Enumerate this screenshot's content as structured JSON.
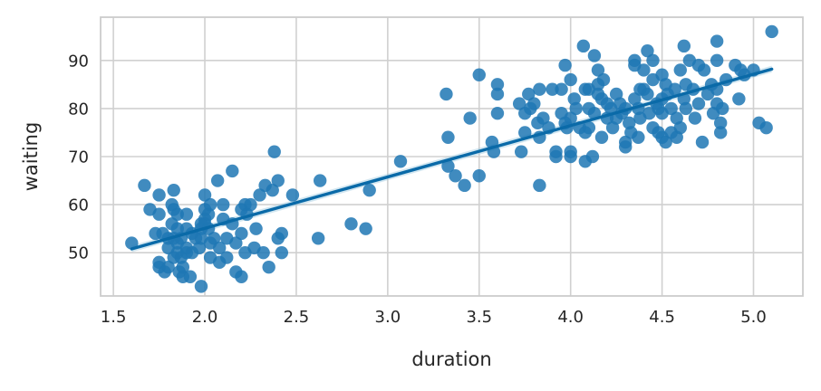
{
  "chart_data": {
    "type": "scatter",
    "xlabel": "duration",
    "ylabel": "waiting",
    "xlim": [
      1.43,
      5.27
    ],
    "ylim": [
      41,
      99
    ],
    "xticks": [
      "1.5",
      "2.0",
      "2.5",
      "3.0",
      "3.5",
      "4.0",
      "4.5",
      "5.0"
    ],
    "yticks": [
      "50",
      "60",
      "70",
      "80",
      "90"
    ],
    "grid": true,
    "legend": "none",
    "colors": {
      "points": "#1f77b4",
      "regression_line": "#0a6aa8",
      "confidence_band": "#9ecae1",
      "grid": "#d0d0d0",
      "frame": "#cccccc"
    },
    "regression": {
      "x": [
        1.6,
        5.1
      ],
      "y": [
        50.8,
        88.2
      ],
      "band": 0.7
    },
    "points": [
      [
        1.6,
        52
      ],
      [
        1.67,
        64
      ],
      [
        1.7,
        59
      ],
      [
        1.73,
        54
      ],
      [
        1.75,
        62
      ],
      [
        1.75,
        58
      ],
      [
        1.75,
        48
      ],
      [
        1.75,
        47
      ],
      [
        1.77,
        54
      ],
      [
        1.78,
        46
      ],
      [
        1.8,
        53
      ],
      [
        1.8,
        51
      ],
      [
        1.8,
        47
      ],
      [
        1.82,
        60
      ],
      [
        1.82,
        56
      ],
      [
        1.83,
        63
      ],
      [
        1.83,
        59
      ],
      [
        1.83,
        53
      ],
      [
        1.83,
        49
      ],
      [
        1.85,
        58
      ],
      [
        1.85,
        55
      ],
      [
        1.85,
        52
      ],
      [
        1.85,
        50
      ],
      [
        1.86,
        46
      ],
      [
        1.87,
        53
      ],
      [
        1.87,
        49
      ],
      [
        1.88,
        45
      ],
      [
        1.88,
        47
      ],
      [
        1.9,
        58
      ],
      [
        1.9,
        55
      ],
      [
        1.9,
        51
      ],
      [
        1.9,
        50
      ],
      [
        1.92,
        45
      ],
      [
        1.93,
        54
      ],
      [
        1.93,
        50
      ],
      [
        1.95,
        53
      ],
      [
        1.97,
        51
      ],
      [
        1.98,
        56
      ],
      [
        1.98,
        55
      ],
      [
        1.98,
        53
      ],
      [
        1.98,
        43
      ],
      [
        2.0,
        62
      ],
      [
        2.0,
        59
      ],
      [
        2.0,
        57
      ],
      [
        2.0,
        56
      ],
      [
        2.02,
        58
      ],
      [
        2.02,
        55
      ],
      [
        2.03,
        60
      ],
      [
        2.03,
        52
      ],
      [
        2.03,
        49
      ],
      [
        2.05,
        53
      ],
      [
        2.07,
        65
      ],
      [
        2.08,
        48
      ],
      [
        2.08,
        51
      ],
      [
        2.1,
        57
      ],
      [
        2.1,
        60
      ],
      [
        2.12,
        53
      ],
      [
        2.12,
        49
      ],
      [
        2.15,
        67
      ],
      [
        2.15,
        56
      ],
      [
        2.17,
        52
      ],
      [
        2.17,
        46
      ],
      [
        2.2,
        59
      ],
      [
        2.2,
        54
      ],
      [
        2.2,
        45
      ],
      [
        2.22,
        50
      ],
      [
        2.22,
        60
      ],
      [
        2.23,
        58
      ],
      [
        2.25,
        60
      ],
      [
        2.27,
        51
      ],
      [
        2.28,
        55
      ],
      [
        2.3,
        62
      ],
      [
        2.32,
        50
      ],
      [
        2.33,
        64
      ],
      [
        2.35,
        47
      ],
      [
        2.37,
        63
      ],
      [
        2.38,
        71
      ],
      [
        2.4,
        65
      ],
      [
        2.4,
        53
      ],
      [
        2.42,
        54
      ],
      [
        2.42,
        50
      ],
      [
        2.48,
        62
      ],
      [
        2.62,
        53
      ],
      [
        2.63,
        65
      ],
      [
        2.8,
        56
      ],
      [
        2.88,
        55
      ],
      [
        2.9,
        63
      ],
      [
        3.07,
        69
      ],
      [
        3.32,
        83
      ],
      [
        3.33,
        74
      ],
      [
        3.33,
        68
      ],
      [
        3.37,
        66
      ],
      [
        3.42,
        64
      ],
      [
        3.45,
        78
      ],
      [
        3.5,
        87
      ],
      [
        3.5,
        66
      ],
      [
        3.57,
        73
      ],
      [
        3.58,
        71
      ],
      [
        3.6,
        85
      ],
      [
        3.6,
        83
      ],
      [
        3.6,
        79
      ],
      [
        3.72,
        81
      ],
      [
        3.73,
        71
      ],
      [
        3.75,
        79
      ],
      [
        3.75,
        75
      ],
      [
        3.77,
        83
      ],
      [
        3.78,
        80
      ],
      [
        3.8,
        81
      ],
      [
        3.82,
        77
      ],
      [
        3.83,
        84
      ],
      [
        3.83,
        74
      ],
      [
        3.83,
        64
      ],
      [
        3.85,
        78
      ],
      [
        3.88,
        76
      ],
      [
        3.9,
        84
      ],
      [
        3.92,
        71
      ],
      [
        3.92,
        70
      ],
      [
        3.95,
        84
      ],
      [
        3.95,
        79
      ],
      [
        3.97,
        89
      ],
      [
        3.97,
        77
      ],
      [
        3.98,
        76
      ],
      [
        4.0,
        86
      ],
      [
        4.0,
        78
      ],
      [
        4.0,
        71
      ],
      [
        4.0,
        70
      ],
      [
        4.02,
        82
      ],
      [
        4.03,
        80
      ],
      [
        4.05,
        76
      ],
      [
        4.07,
        93
      ],
      [
        4.08,
        84
      ],
      [
        4.08,
        75
      ],
      [
        4.08,
        69
      ],
      [
        4.1,
        84
      ],
      [
        4.1,
        80
      ],
      [
        4.1,
        76
      ],
      [
        4.12,
        70
      ],
      [
        4.13,
        91
      ],
      [
        4.13,
        79
      ],
      [
        4.15,
        88
      ],
      [
        4.15,
        85
      ],
      [
        4.15,
        83
      ],
      [
        4.17,
        82
      ],
      [
        4.17,
        74
      ],
      [
        4.18,
        86
      ],
      [
        4.2,
        81
      ],
      [
        4.2,
        78
      ],
      [
        4.22,
        80
      ],
      [
        4.23,
        76
      ],
      [
        4.25,
        83
      ],
      [
        4.27,
        81
      ],
      [
        4.28,
        79
      ],
      [
        4.3,
        80
      ],
      [
        4.3,
        73
      ],
      [
        4.3,
        72
      ],
      [
        4.32,
        77
      ],
      [
        4.33,
        75
      ],
      [
        4.35,
        90
      ],
      [
        4.35,
        89
      ],
      [
        4.35,
        82
      ],
      [
        4.37,
        80
      ],
      [
        4.37,
        74
      ],
      [
        4.38,
        78
      ],
      [
        4.4,
        88
      ],
      [
        4.4,
        84
      ],
      [
        4.42,
        92
      ],
      [
        4.42,
        83
      ],
      [
        4.43,
        79
      ],
      [
        4.45,
        90
      ],
      [
        4.45,
        86
      ],
      [
        4.45,
        76
      ],
      [
        4.47,
        81
      ],
      [
        4.48,
        75
      ],
      [
        4.5,
        87
      ],
      [
        4.5,
        82
      ],
      [
        4.5,
        79
      ],
      [
        4.5,
        74
      ],
      [
        4.52,
        85
      ],
      [
        4.52,
        73
      ],
      [
        4.53,
        83
      ],
      [
        4.55,
        80
      ],
      [
        4.57,
        84
      ],
      [
        4.58,
        78
      ],
      [
        4.58,
        74
      ],
      [
        4.6,
        88
      ],
      [
        4.6,
        76
      ],
      [
        4.62,
        93
      ],
      [
        4.62,
        82
      ],
      [
        4.63,
        80
      ],
      [
        4.65,
        90
      ],
      [
        4.67,
        84
      ],
      [
        4.68,
        78
      ],
      [
        4.7,
        89
      ],
      [
        4.7,
        81
      ],
      [
        4.72,
        73
      ],
      [
        4.73,
        88
      ],
      [
        4.75,
        83
      ],
      [
        4.77,
        85
      ],
      [
        4.78,
        79
      ],
      [
        4.8,
        94
      ],
      [
        4.8,
        90
      ],
      [
        4.8,
        84
      ],
      [
        4.8,
        81
      ],
      [
        4.82,
        77
      ],
      [
        4.82,
        75
      ],
      [
        4.83,
        80
      ],
      [
        4.85,
        86
      ],
      [
        4.9,
        89
      ],
      [
        4.92,
        82
      ],
      [
        4.93,
        88
      ],
      [
        4.95,
        87
      ],
      [
        5.0,
        88
      ],
      [
        5.03,
        77
      ],
      [
        5.07,
        76
      ],
      [
        5.1,
        96
      ],
      [
        4.38,
        84
      ],
      [
        4.48,
        80
      ],
      [
        4.63,
        85
      ],
      [
        4.25,
        78
      ],
      [
        4.55,
        75
      ]
    ]
  }
}
